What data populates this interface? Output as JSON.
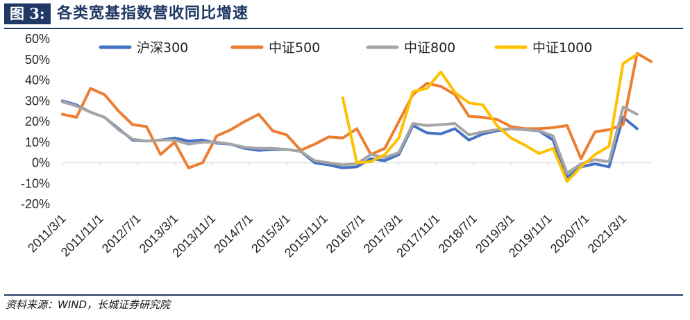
{
  "header": {
    "figure_label": "图 3:",
    "title": "各类宽基指数营收同比增速"
  },
  "source": "资料来源：WIND，长城证券研究院",
  "chart_data": {
    "type": "line",
    "title": "各类宽基指数营收同比增速",
    "xlabel": "",
    "ylabel": "",
    "ylim": [
      -0.2,
      0.6
    ],
    "yticks": [
      -0.2,
      -0.1,
      0,
      0.1,
      0.2,
      0.3,
      0.4,
      0.5,
      0.6
    ],
    "ytick_labels": [
      "-20%",
      "-10%",
      "0%",
      "10%",
      "20%",
      "30%",
      "40%",
      "50%",
      "60%"
    ],
    "xrange": [
      "2011/3/1",
      "2021/9/1"
    ],
    "xtick_labels": [
      "2011/3/1",
      "2011/11/1",
      "2012/7/1",
      "2013/3/1",
      "2013/11/1",
      "2014/7/1",
      "2015/3/1",
      "2015/11/1",
      "2016/7/1",
      "2017/3/1",
      "2017/11/1",
      "2018/7/1",
      "2019/3/1",
      "2019/11/1",
      "2020/7/1",
      "2021/3/1"
    ],
    "grid": false,
    "legend": "top",
    "series": [
      {
        "name": "沪深300",
        "color": "#4472c4",
        "points": [
          [
            "2011/3/1",
            0.3
          ],
          [
            "2011/6/1",
            0.28
          ],
          [
            "2011/9/1",
            0.245
          ],
          [
            "2011/12/1",
            0.22
          ],
          [
            "2012/3/1",
            0.165
          ],
          [
            "2012/6/1",
            0.11
          ],
          [
            "2012/9/1",
            0.105
          ],
          [
            "2012/12/1",
            0.11
          ],
          [
            "2013/3/1",
            0.12
          ],
          [
            "2013/6/1",
            0.105
          ],
          [
            "2013/9/1",
            0.11
          ],
          [
            "2013/12/1",
            0.095
          ],
          [
            "2014/3/1",
            0.09
          ],
          [
            "2014/6/1",
            0.07
          ],
          [
            "2014/9/1",
            0.06
          ],
          [
            "2014/12/1",
            0.065
          ],
          [
            "2015/3/1",
            0.065
          ],
          [
            "2015/6/1",
            0.055
          ],
          [
            "2015/9/1",
            0.0
          ],
          [
            "2015/12/1",
            -0.01
          ],
          [
            "2016/3/1",
            -0.025
          ],
          [
            "2016/6/1",
            -0.02
          ],
          [
            "2016/9/1",
            0.02
          ],
          [
            "2016/12/1",
            0.01
          ],
          [
            "2017/3/1",
            0.04
          ],
          [
            "2017/6/1",
            0.18
          ],
          [
            "2017/9/1",
            0.145
          ],
          [
            "2017/12/1",
            0.14
          ],
          [
            "2018/3/1",
            0.165
          ],
          [
            "2018/6/1",
            0.11
          ],
          [
            "2018/9/1",
            0.14
          ],
          [
            "2018/12/1",
            0.155
          ],
          [
            "2019/3/1",
            0.165
          ],
          [
            "2019/6/1",
            0.16
          ],
          [
            "2019/9/1",
            0.155
          ],
          [
            "2019/12/1",
            0.11
          ],
          [
            "2020/3/1",
            -0.07
          ],
          [
            "2020/6/1",
            -0.02
          ],
          [
            "2020/9/1",
            -0.005
          ],
          [
            "2020/12/1",
            -0.02
          ],
          [
            "2021/3/1",
            0.22
          ],
          [
            "2021/6/1",
            0.165
          ]
        ]
      },
      {
        "name": "中证500",
        "color": "#ed7d31",
        "points": [
          [
            "2011/3/1",
            0.235
          ],
          [
            "2011/6/1",
            0.22
          ],
          [
            "2011/9/1",
            0.36
          ],
          [
            "2011/12/1",
            0.33
          ],
          [
            "2012/3/1",
            0.25
          ],
          [
            "2012/6/1",
            0.185
          ],
          [
            "2012/9/1",
            0.175
          ],
          [
            "2012/12/1",
            0.04
          ],
          [
            "2013/3/1",
            0.1
          ],
          [
            "2013/6/1",
            -0.025
          ],
          [
            "2013/9/1",
            0.0
          ],
          [
            "2013/12/1",
            0.13
          ],
          [
            "2014/3/1",
            0.16
          ],
          [
            "2014/6/1",
            0.2
          ],
          [
            "2014/9/1",
            0.235
          ],
          [
            "2014/12/1",
            0.155
          ],
          [
            "2015/3/1",
            0.135
          ],
          [
            "2015/6/1",
            0.06
          ],
          [
            "2015/9/1",
            0.09
          ],
          [
            "2015/12/1",
            0.125
          ],
          [
            "2016/3/1",
            0.12
          ],
          [
            "2016/6/1",
            0.165
          ],
          [
            "2016/9/1",
            0.04
          ],
          [
            "2016/12/1",
            0.07
          ],
          [
            "2017/3/1",
            0.2
          ],
          [
            "2017/6/1",
            0.33
          ],
          [
            "2017/9/1",
            0.385
          ],
          [
            "2017/12/1",
            0.37
          ],
          [
            "2018/3/1",
            0.33
          ],
          [
            "2018/6/1",
            0.225
          ],
          [
            "2018/9/1",
            0.22
          ],
          [
            "2018/12/1",
            0.21
          ],
          [
            "2019/3/1",
            0.175
          ],
          [
            "2019/6/1",
            0.165
          ],
          [
            "2019/9/1",
            0.165
          ],
          [
            "2019/12/1",
            0.17
          ],
          [
            "2020/3/1",
            0.18
          ],
          [
            "2020/6/1",
            0.02
          ],
          [
            "2020/9/1",
            0.15
          ],
          [
            "2020/12/1",
            0.16
          ],
          [
            "2021/3/1",
            0.185
          ],
          [
            "2021/6/1",
            0.53
          ],
          [
            "2021/9/1",
            0.49
          ]
        ]
      },
      {
        "name": "中证800",
        "color": "#a5a5a5",
        "points": [
          [
            "2011/3/1",
            0.295
          ],
          [
            "2011/6/1",
            0.275
          ],
          [
            "2011/9/1",
            0.245
          ],
          [
            "2011/12/1",
            0.22
          ],
          [
            "2012/3/1",
            0.16
          ],
          [
            "2012/6/1",
            0.115
          ],
          [
            "2012/9/1",
            0.105
          ],
          [
            "2012/12/1",
            0.11
          ],
          [
            "2013/3/1",
            0.11
          ],
          [
            "2013/6/1",
            0.09
          ],
          [
            "2013/9/1",
            0.1
          ],
          [
            "2013/12/1",
            0.1
          ],
          [
            "2014/3/1",
            0.09
          ],
          [
            "2014/6/1",
            0.075
          ],
          [
            "2014/9/1",
            0.07
          ],
          [
            "2014/12/1",
            0.07
          ],
          [
            "2015/3/1",
            0.065
          ],
          [
            "2015/6/1",
            0.055
          ],
          [
            "2015/9/1",
            0.01
          ],
          [
            "2015/12/1",
            0.0
          ],
          [
            "2016/3/1",
            -0.01
          ],
          [
            "2016/6/1",
            -0.005
          ],
          [
            "2016/9/1",
            0.04
          ],
          [
            "2016/12/1",
            0.025
          ],
          [
            "2017/3/1",
            0.05
          ],
          [
            "2017/6/1",
            0.19
          ],
          [
            "2017/9/1",
            0.18
          ],
          [
            "2017/12/1",
            0.185
          ],
          [
            "2018/3/1",
            0.19
          ],
          [
            "2018/6/1",
            0.135
          ],
          [
            "2018/9/1",
            0.15
          ],
          [
            "2018/12/1",
            0.16
          ],
          [
            "2019/3/1",
            0.165
          ],
          [
            "2019/6/1",
            0.16
          ],
          [
            "2019/9/1",
            0.155
          ],
          [
            "2019/12/1",
            0.13
          ],
          [
            "2020/3/1",
            -0.05
          ],
          [
            "2020/6/1",
            -0.005
          ],
          [
            "2020/9/1",
            0.015
          ],
          [
            "2020/12/1",
            0.005
          ],
          [
            "2021/3/1",
            0.27
          ],
          [
            "2021/6/1",
            0.235
          ]
        ]
      },
      {
        "name": "中证1000",
        "color": "#ffc000",
        "points": [
          [
            "2016/3/1",
            0.315
          ],
          [
            "2016/6/1",
            0.0
          ],
          [
            "2016/9/1",
            0.005
          ],
          [
            "2016/12/1",
            0.04
          ],
          [
            "2017/3/1",
            0.12
          ],
          [
            "2017/6/1",
            0.345
          ],
          [
            "2017/9/1",
            0.36
          ],
          [
            "2017/12/1",
            0.44
          ],
          [
            "2018/3/1",
            0.34
          ],
          [
            "2018/6/1",
            0.29
          ],
          [
            "2018/9/1",
            0.28
          ],
          [
            "2018/12/1",
            0.18
          ],
          [
            "2019/3/1",
            0.12
          ],
          [
            "2019/6/1",
            0.085
          ],
          [
            "2019/9/1",
            0.045
          ],
          [
            "2019/12/1",
            0.07
          ],
          [
            "2020/3/1",
            -0.09
          ],
          [
            "2020/6/1",
            -0.02
          ],
          [
            "2020/9/1",
            0.04
          ],
          [
            "2020/12/1",
            0.08
          ],
          [
            "2021/3/1",
            0.48
          ],
          [
            "2021/6/1",
            0.525
          ]
        ]
      }
    ]
  }
}
